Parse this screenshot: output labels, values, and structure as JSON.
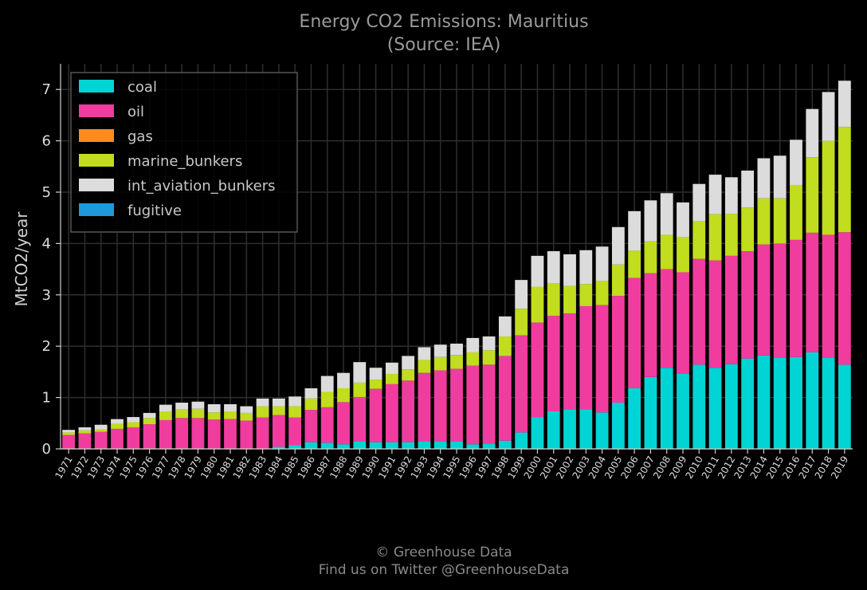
{
  "chart_data": {
    "type": "bar",
    "stacked": true,
    "title": "Energy CO2 Emissions: Mauritius",
    "subtitle": "(Source: IEA)",
    "xlabel": "",
    "ylabel": "MtCO2/year",
    "ylim": [
      0,
      7.5
    ],
    "yticks": [
      0,
      1,
      2,
      3,
      4,
      5,
      6,
      7
    ],
    "grid": true,
    "legend_position": "top-left",
    "categories": [
      "1971",
      "1972",
      "1973",
      "1974",
      "1975",
      "1976",
      "1977",
      "1978",
      "1979",
      "1980",
      "1981",
      "1982",
      "1983",
      "1984",
      "1985",
      "1986",
      "1987",
      "1988",
      "1989",
      "1990",
      "1991",
      "1992",
      "1993",
      "1994",
      "1995",
      "1996",
      "1997",
      "1998",
      "1999",
      "2000",
      "2001",
      "2002",
      "2003",
      "2004",
      "2005",
      "2006",
      "2007",
      "2008",
      "2009",
      "2010",
      "2011",
      "2012",
      "2013",
      "2014",
      "2015",
      "2016",
      "2017",
      "2018",
      "2019"
    ],
    "series": [
      {
        "name": "coal",
        "color": "#00d4d4",
        "values": [
          0,
          0,
          0,
          0,
          0,
          0,
          0,
          0,
          0,
          0,
          0,
          0,
          0,
          0.04,
          0.07,
          0.13,
          0.12,
          0.09,
          0.15,
          0.13,
          0.13,
          0.13,
          0.15,
          0.15,
          0.15,
          0.09,
          0.1,
          0.16,
          0.32,
          0.62,
          0.73,
          0.77,
          0.77,
          0.71,
          0.9,
          1.18,
          1.4,
          1.58,
          1.47,
          1.64,
          1.58,
          1.65,
          1.76,
          1.82,
          1.77,
          1.79,
          1.88,
          1.78,
          1.64
        ]
      },
      {
        "name": "oil",
        "color": "#f03c9e",
        "values": [
          0.27,
          0.3,
          0.33,
          0.39,
          0.42,
          0.48,
          0.56,
          0.6,
          0.6,
          0.57,
          0.58,
          0.55,
          0.61,
          0.62,
          0.54,
          0.63,
          0.69,
          0.82,
          0.86,
          1.04,
          1.13,
          1.2,
          1.33,
          1.38,
          1.41,
          1.53,
          1.54,
          1.65,
          1.89,
          1.84,
          1.86,
          1.87,
          2.01,
          2.09,
          2.08,
          2.15,
          2.02,
          1.92,
          1.97,
          2.06,
          2.09,
          2.11,
          2.09,
          2.16,
          2.23,
          2.28,
          2.33,
          2.39,
          2.58
        ]
      },
      {
        "name": "gas",
        "color": "#ff8a1e",
        "values": [
          0,
          0,
          0,
          0,
          0,
          0,
          0,
          0,
          0,
          0,
          0,
          0,
          0,
          0,
          0,
          0,
          0,
          0,
          0,
          0,
          0,
          0,
          0,
          0,
          0,
          0,
          0,
          0,
          0,
          0,
          0,
          0,
          0,
          0,
          0,
          0,
          0,
          0,
          0,
          0,
          0,
          0,
          0,
          0,
          0,
          0,
          0,
          0,
          0
        ]
      },
      {
        "name": "marine_bunkers",
        "color": "#c2dc1e",
        "values": [
          0.05,
          0.06,
          0.05,
          0.1,
          0.1,
          0.12,
          0.17,
          0.17,
          0.18,
          0.14,
          0.15,
          0.15,
          0.22,
          0.17,
          0.22,
          0.22,
          0.3,
          0.27,
          0.28,
          0.18,
          0.2,
          0.22,
          0.25,
          0.26,
          0.27,
          0.26,
          0.28,
          0.38,
          0.52,
          0.7,
          0.64,
          0.53,
          0.43,
          0.47,
          0.61,
          0.53,
          0.62,
          0.67,
          0.69,
          0.73,
          0.9,
          0.82,
          0.85,
          0.9,
          0.88,
          1.07,
          1.47,
          1.83,
          2.05
        ]
      },
      {
        "name": "int_aviation_bunkers",
        "color": "#dcdcdc",
        "values": [
          0.05,
          0.06,
          0.09,
          0.09,
          0.1,
          0.1,
          0.13,
          0.13,
          0.14,
          0.16,
          0.14,
          0.13,
          0.15,
          0.15,
          0.19,
          0.2,
          0.31,
          0.3,
          0.4,
          0.23,
          0.22,
          0.26,
          0.25,
          0.24,
          0.22,
          0.28,
          0.27,
          0.39,
          0.56,
          0.6,
          0.62,
          0.62,
          0.66,
          0.67,
          0.73,
          0.77,
          0.8,
          0.81,
          0.67,
          0.73,
          0.77,
          0.71,
          0.72,
          0.78,
          0.83,
          0.88,
          0.94,
          0.95,
          0.9
        ]
      },
      {
        "name": "fugitive",
        "color": "#1f9ad9",
        "values": [
          0,
          0,
          0,
          0,
          0,
          0,
          0,
          0,
          0,
          0,
          0,
          0,
          0,
          0,
          0,
          0,
          0,
          0,
          0,
          0,
          0,
          0,
          0,
          0,
          0,
          0,
          0,
          0,
          0,
          0,
          0,
          0,
          0,
          0,
          0,
          0,
          0,
          0,
          0,
          0,
          0,
          0,
          0,
          0,
          0,
          0,
          0,
          0,
          0
        ]
      }
    ]
  },
  "footer": {
    "line1": "© Greenhouse Data",
    "line2": "Find us on Twitter @GreenhouseData"
  }
}
